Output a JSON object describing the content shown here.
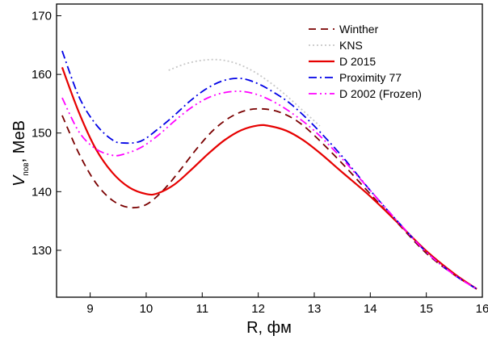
{
  "chart_data": {
    "type": "line",
    "xlabel": "R, фм",
    "ylabel": {
      "main": "V",
      "subscript": "пов",
      "suffix": ", МеВ"
    },
    "xlim": [
      8.4,
      16.0
    ],
    "ylim": [
      122,
      172
    ],
    "x_ticks": [
      9,
      10,
      11,
      12,
      13,
      14,
      15,
      16
    ],
    "y_ticks": [
      130,
      140,
      150,
      160,
      170
    ],
    "grid": false,
    "legend_position": "top-right",
    "series": [
      {
        "name": "Winther",
        "color": "#7a0000",
        "dash": "9 6",
        "x": [
          8.5,
          8.8,
          9.1,
          9.4,
          9.7,
          10.0,
          10.3,
          10.6,
          10.9,
          11.2,
          11.5,
          11.8,
          12.1,
          12.4,
          12.7,
          13.0,
          13.5,
          14.0,
          14.5,
          15.0,
          15.5,
          15.9
        ],
        "y": [
          153,
          146.5,
          141.5,
          138.5,
          137.3,
          137.8,
          140.2,
          143.6,
          147.3,
          150.5,
          152.7,
          153.9,
          154.1,
          153.5,
          152,
          149.6,
          144.8,
          139.6,
          134.5,
          129.5,
          125.8,
          123.4
        ]
      },
      {
        "name": "KNS",
        "color": "#c8c8c8",
        "dash": "2 3",
        "x": [
          10.4,
          10.7,
          11.0,
          11.3,
          11.6,
          11.9,
          12.2,
          12.5,
          12.8,
          13.1
        ],
        "y": [
          160.7,
          161.8,
          162.4,
          162.5,
          161.9,
          160.6,
          158.7,
          156.4,
          153.8,
          151.2
        ]
      },
      {
        "name": "D 2015",
        "color": "#e60000",
        "dash": "",
        "x": [
          8.5,
          8.8,
          9.1,
          9.4,
          9.7,
          10.0,
          10.2,
          10.5,
          10.8,
          11.1,
          11.4,
          11.7,
          12.0,
          12.2,
          12.5,
          12.8,
          13.1,
          13.5,
          14.0,
          14.5,
          15.0,
          15.5,
          15.9
        ],
        "y": [
          161.2,
          153.5,
          147.3,
          143.2,
          140.7,
          139.6,
          139.7,
          141.2,
          143.7,
          146.4,
          148.8,
          150.5,
          151.3,
          151.2,
          150.4,
          148.8,
          146.6,
          143.3,
          139.2,
          134.6,
          129.9,
          126,
          123.4
        ]
      },
      {
        "name": "Proximity 77",
        "color": "#0000e6",
        "dash": "10 4 2 4",
        "x": [
          8.5,
          8.8,
          9.1,
          9.4,
          9.6,
          9.9,
          10.2,
          10.5,
          10.8,
          11.1,
          11.4,
          11.7,
          12.0,
          12.3,
          12.6,
          13.0,
          13.5,
          14.0,
          14.5,
          15.0,
          15.5,
          15.9
        ],
        "y": [
          164,
          156.2,
          151.5,
          148.8,
          148.3,
          148.6,
          150.6,
          153,
          155.6,
          157.7,
          159,
          159.3,
          158.4,
          156.8,
          154.8,
          151.2,
          146,
          140.2,
          134.8,
          129.7,
          125.8,
          123.4
        ]
      },
      {
        "name": "D 2002 (Frozen)",
        "color": "#ff00ff",
        "dash": "10 4 2 4 2 4",
        "x": [
          8.5,
          8.8,
          9.1,
          9.4,
          9.6,
          9.9,
          10.2,
          10.5,
          10.8,
          11.1,
          11.4,
          11.7,
          12.0,
          12.3,
          12.6,
          13.0,
          13.5,
          14.0,
          14.5,
          15.0,
          15.5,
          15.9
        ],
        "y": [
          156,
          150.2,
          147.3,
          146.2,
          146.4,
          147.5,
          149.5,
          152,
          154.3,
          156,
          156.9,
          157.1,
          156.5,
          155.2,
          153.4,
          150.4,
          145.6,
          140.2,
          134.8,
          129.7,
          125.8,
          123.4
        ]
      }
    ]
  }
}
